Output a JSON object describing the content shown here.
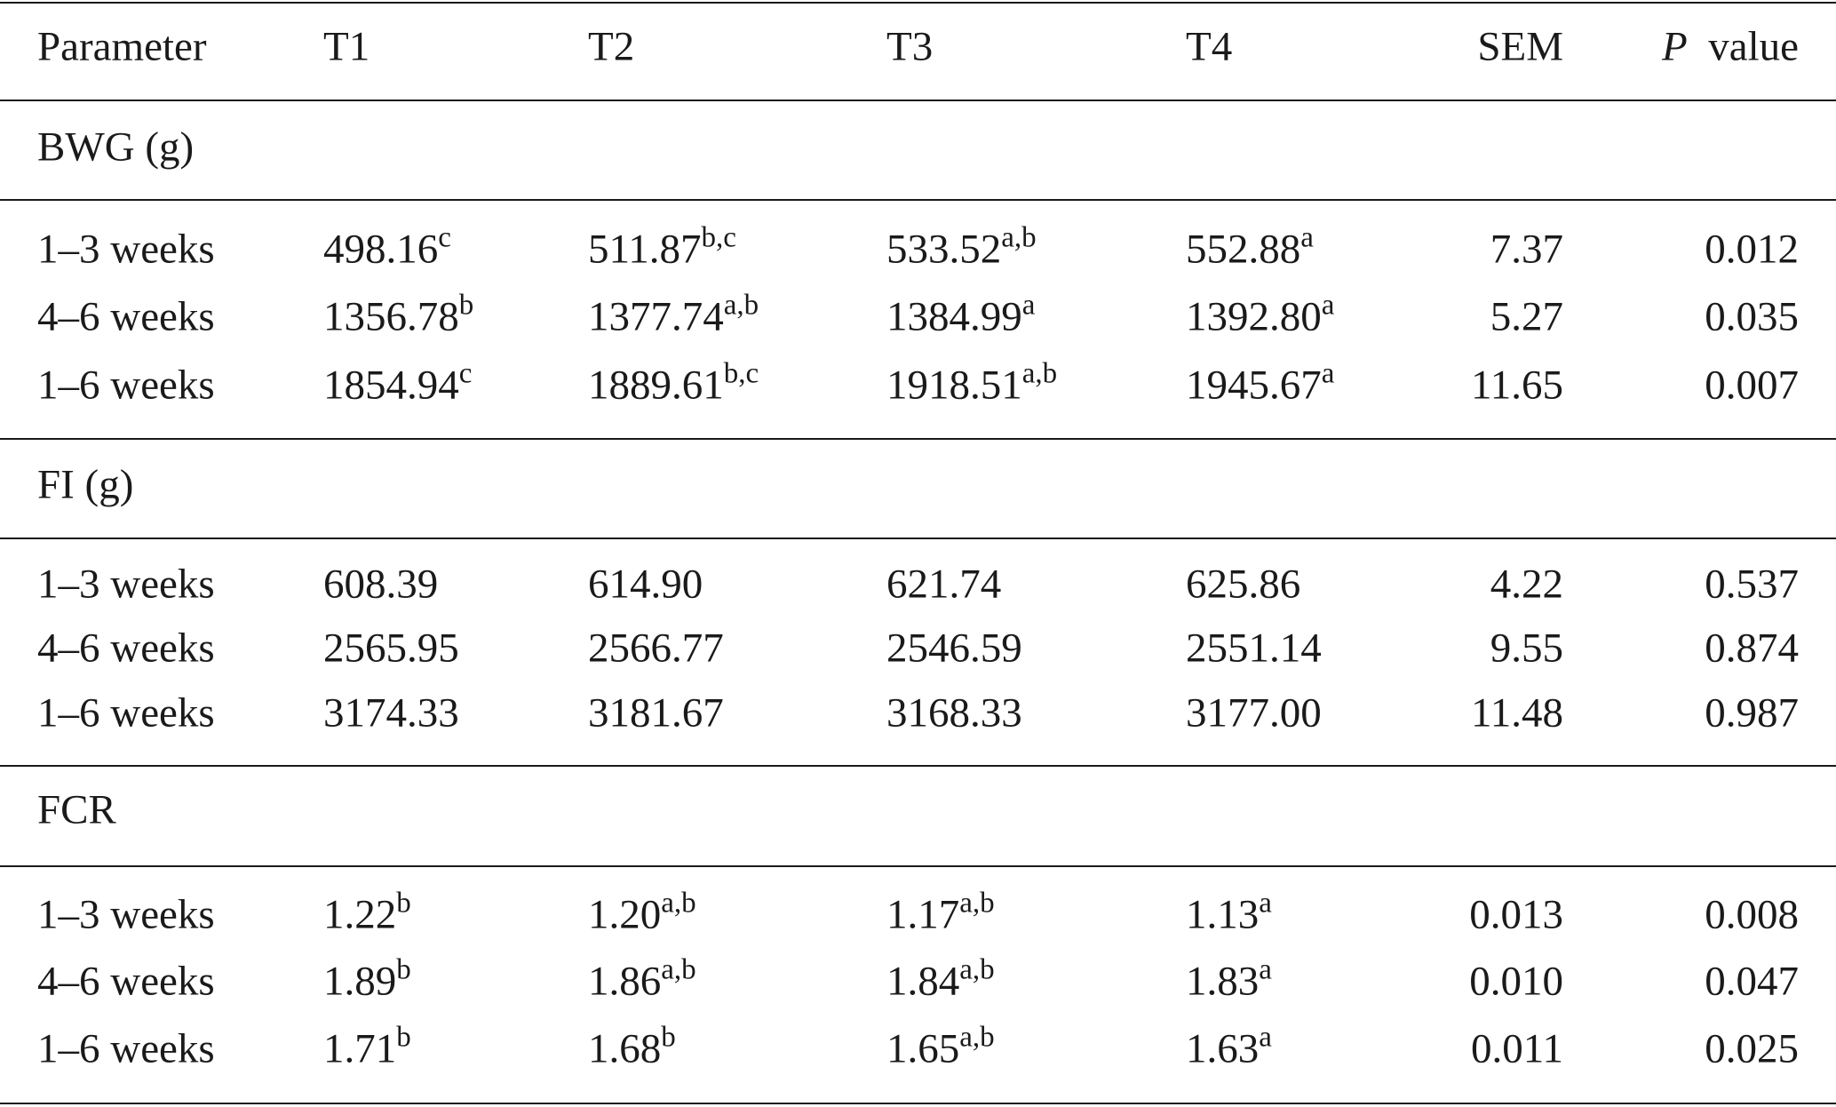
{
  "table": {
    "header": [
      "Parameter",
      "T1",
      "T2",
      "T3",
      "T4",
      "SEM",
      {
        "symbol": "P",
        "label": "value"
      }
    ],
    "sections": [
      {
        "label": "BWG (g)",
        "rows": [
          [
            {
              "value": "1–3 weeks"
            },
            {
              "value": "498.16",
              "sup": "c"
            },
            {
              "value": "511.87",
              "sup": "b,c"
            },
            {
              "value": "533.52",
              "sup": "a,b"
            },
            {
              "value": "552.88",
              "sup": "a"
            },
            {
              "value": "7.37"
            },
            {
              "value": "0.012"
            }
          ],
          [
            {
              "value": "4–6 weeks"
            },
            {
              "value": "1356.78",
              "sup": "b"
            },
            {
              "value": "1377.74",
              "sup": "a,b"
            },
            {
              "value": "1384.99",
              "sup": "a"
            },
            {
              "value": "1392.80",
              "sup": "a"
            },
            {
              "value": "5.27"
            },
            {
              "value": "0.035"
            }
          ],
          [
            {
              "value": "1–6 weeks"
            },
            {
              "value": "1854.94",
              "sup": "c"
            },
            {
              "value": "1889.61",
              "sup": "b,c"
            },
            {
              "value": "1918.51",
              "sup": "a,b"
            },
            {
              "value": "1945.67",
              "sup": "a"
            },
            {
              "value": "11.65"
            },
            {
              "value": "0.007"
            }
          ]
        ]
      },
      {
        "label": "FI (g)",
        "rows": [
          [
            {
              "value": "1–3 weeks"
            },
            {
              "value": "608.39"
            },
            {
              "value": "614.90"
            },
            {
              "value": "621.74"
            },
            {
              "value": "625.86"
            },
            {
              "value": "4.22"
            },
            {
              "value": "0.537"
            }
          ],
          [
            {
              "value": "4–6 weeks"
            },
            {
              "value": "2565.95"
            },
            {
              "value": "2566.77"
            },
            {
              "value": "2546.59"
            },
            {
              "value": "2551.14"
            },
            {
              "value": "9.55"
            },
            {
              "value": "0.874"
            }
          ],
          [
            {
              "value": "1–6 weeks"
            },
            {
              "value": "3174.33"
            },
            {
              "value": "3181.67"
            },
            {
              "value": "3168.33"
            },
            {
              "value": "3177.00"
            },
            {
              "value": "11.48"
            },
            {
              "value": "0.987"
            }
          ]
        ]
      },
      {
        "label": "FCR",
        "rows": [
          [
            {
              "value": "1–3 weeks"
            },
            {
              "value": "1.22",
              "sup": "b"
            },
            {
              "value": "1.20",
              "sup": "a,b"
            },
            {
              "value": "1.17",
              "sup": "a,b"
            },
            {
              "value": "1.13",
              "sup": "a"
            },
            {
              "value": "0.013"
            },
            {
              "value": "0.008"
            }
          ],
          [
            {
              "value": "4–6 weeks"
            },
            {
              "value": "1.89",
              "sup": "b"
            },
            {
              "value": "1.86",
              "sup": "a,b"
            },
            {
              "value": "1.84",
              "sup": "a,b"
            },
            {
              "value": "1.83",
              "sup": "a"
            },
            {
              "value": "0.010"
            },
            {
              "value": "0.047"
            }
          ],
          [
            {
              "value": "1–6 weeks"
            },
            {
              "value": "1.71",
              "sup": "b"
            },
            {
              "value": "1.68",
              "sup": "b"
            },
            {
              "value": "1.65",
              "sup": "a,b"
            },
            {
              "value": "1.63",
              "sup": "a"
            },
            {
              "value": "0.011"
            },
            {
              "value": "0.025"
            }
          ]
        ]
      }
    ]
  }
}
